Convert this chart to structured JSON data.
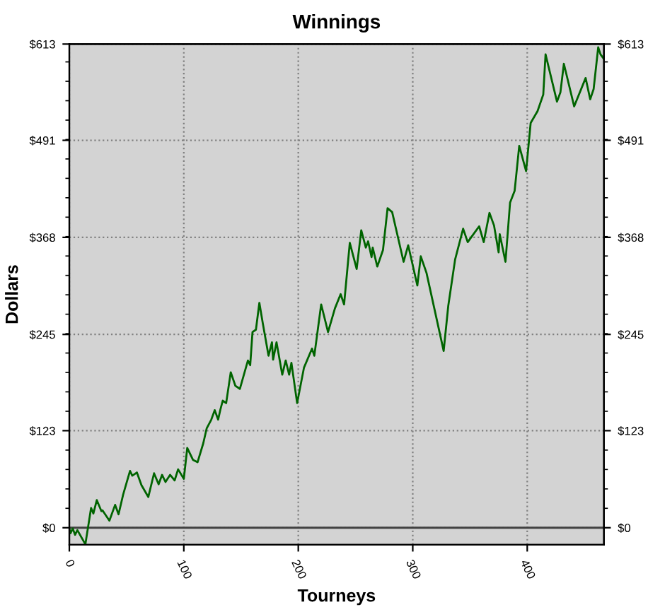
{
  "chart_data": {
    "type": "line",
    "title": "Winnings",
    "xlabel": "Tourneys",
    "ylabel": "Dollars",
    "xlim": [
      0,
      467
    ],
    "xticks": [
      0,
      100,
      200,
      300,
      400
    ],
    "ylim": [
      -21.5,
      613
    ],
    "yticks": [
      {
        "value": 0,
        "label": "$0"
      },
      {
        "value": 123,
        "label": "$123"
      },
      {
        "value": 245,
        "label": "$245"
      },
      {
        "value": 368,
        "label": "$368"
      },
      {
        "value": 491,
        "label": "$491"
      },
      {
        "value": 613,
        "label": "$613"
      }
    ],
    "y2lim": [
      -21.5,
      613
    ],
    "y2ticks": [
      {
        "value": 0,
        "label": "$0"
      },
      {
        "value": 123,
        "label": "$123"
      },
      {
        "value": 245,
        "label": "$245"
      },
      {
        "value": 368,
        "label": "$368"
      },
      {
        "value": 491,
        "label": "$491"
      },
      {
        "value": 613,
        "label": "$613"
      }
    ],
    "grid": true,
    "legend": false,
    "marker": "none",
    "line_style": "solid",
    "ref_lines": [
      {
        "axis": "y",
        "value": 0,
        "color": "#404040",
        "line_style": "solid"
      }
    ],
    "series": [
      {
        "color": "#006400",
        "x": [
          0,
          1,
          3,
          5,
          7,
          14,
          19,
          21,
          24,
          28,
          29,
          35,
          40,
          43,
          47,
          53,
          55,
          59,
          63,
          69,
          74,
          78,
          81,
          84,
          88,
          92,
          95,
          100,
          103,
          108,
          112,
          117,
          120,
          124,
          127,
          130,
          132,
          134,
          137,
          141,
          145,
          149,
          156,
          158,
          160,
          163,
          166,
          169,
          174,
          177,
          178,
          181,
          186,
          189,
          192,
          194,
          199,
          205,
          212,
          214,
          220,
          226,
          232,
          237,
          240,
          245,
          251,
          255,
          259,
          261,
          264,
          265,
          269,
          274,
          278,
          282,
          292,
          296,
          304,
          307,
          312,
          327,
          331,
          337,
          344,
          348,
          352,
          358,
          362,
          367,
          371,
          375,
          376,
          381,
          385,
          389,
          393,
          399,
          403,
          409,
          414,
          416,
          426,
          429,
          432,
          441,
          451,
          455,
          458,
          462,
          464,
          467
        ],
        "values": [
          -1,
          -7,
          -1,
          -9,
          -3,
          -21,
          25,
          18,
          35,
          21,
          22,
          9,
          29,
          17,
          42,
          72,
          66,
          70,
          54,
          39,
          69,
          55,
          67,
          58,
          67,
          60,
          74,
          62,
          101,
          86,
          83,
          107,
          126,
          137,
          149,
          137,
          150,
          161,
          158,
          197,
          180,
          176,
          212,
          206,
          248,
          251,
          285,
          259,
          218,
          235,
          213,
          235,
          194,
          212,
          194,
          209,
          158,
          203,
          227,
          218,
          283,
          248,
          278,
          296,
          283,
          361,
          328,
          377,
          355,
          363,
          343,
          355,
          331,
          352,
          405,
          400,
          337,
          358,
          307,
          344,
          323,
          224,
          281,
          340,
          379,
          362,
          370,
          382,
          362,
          399,
          383,
          349,
          372,
          337,
          412,
          427,
          484,
          452,
          513,
          528,
          549,
          600,
          540,
          552,
          588,
          534,
          570,
          543,
          556,
          609,
          600,
          594
        ]
      }
    ]
  }
}
